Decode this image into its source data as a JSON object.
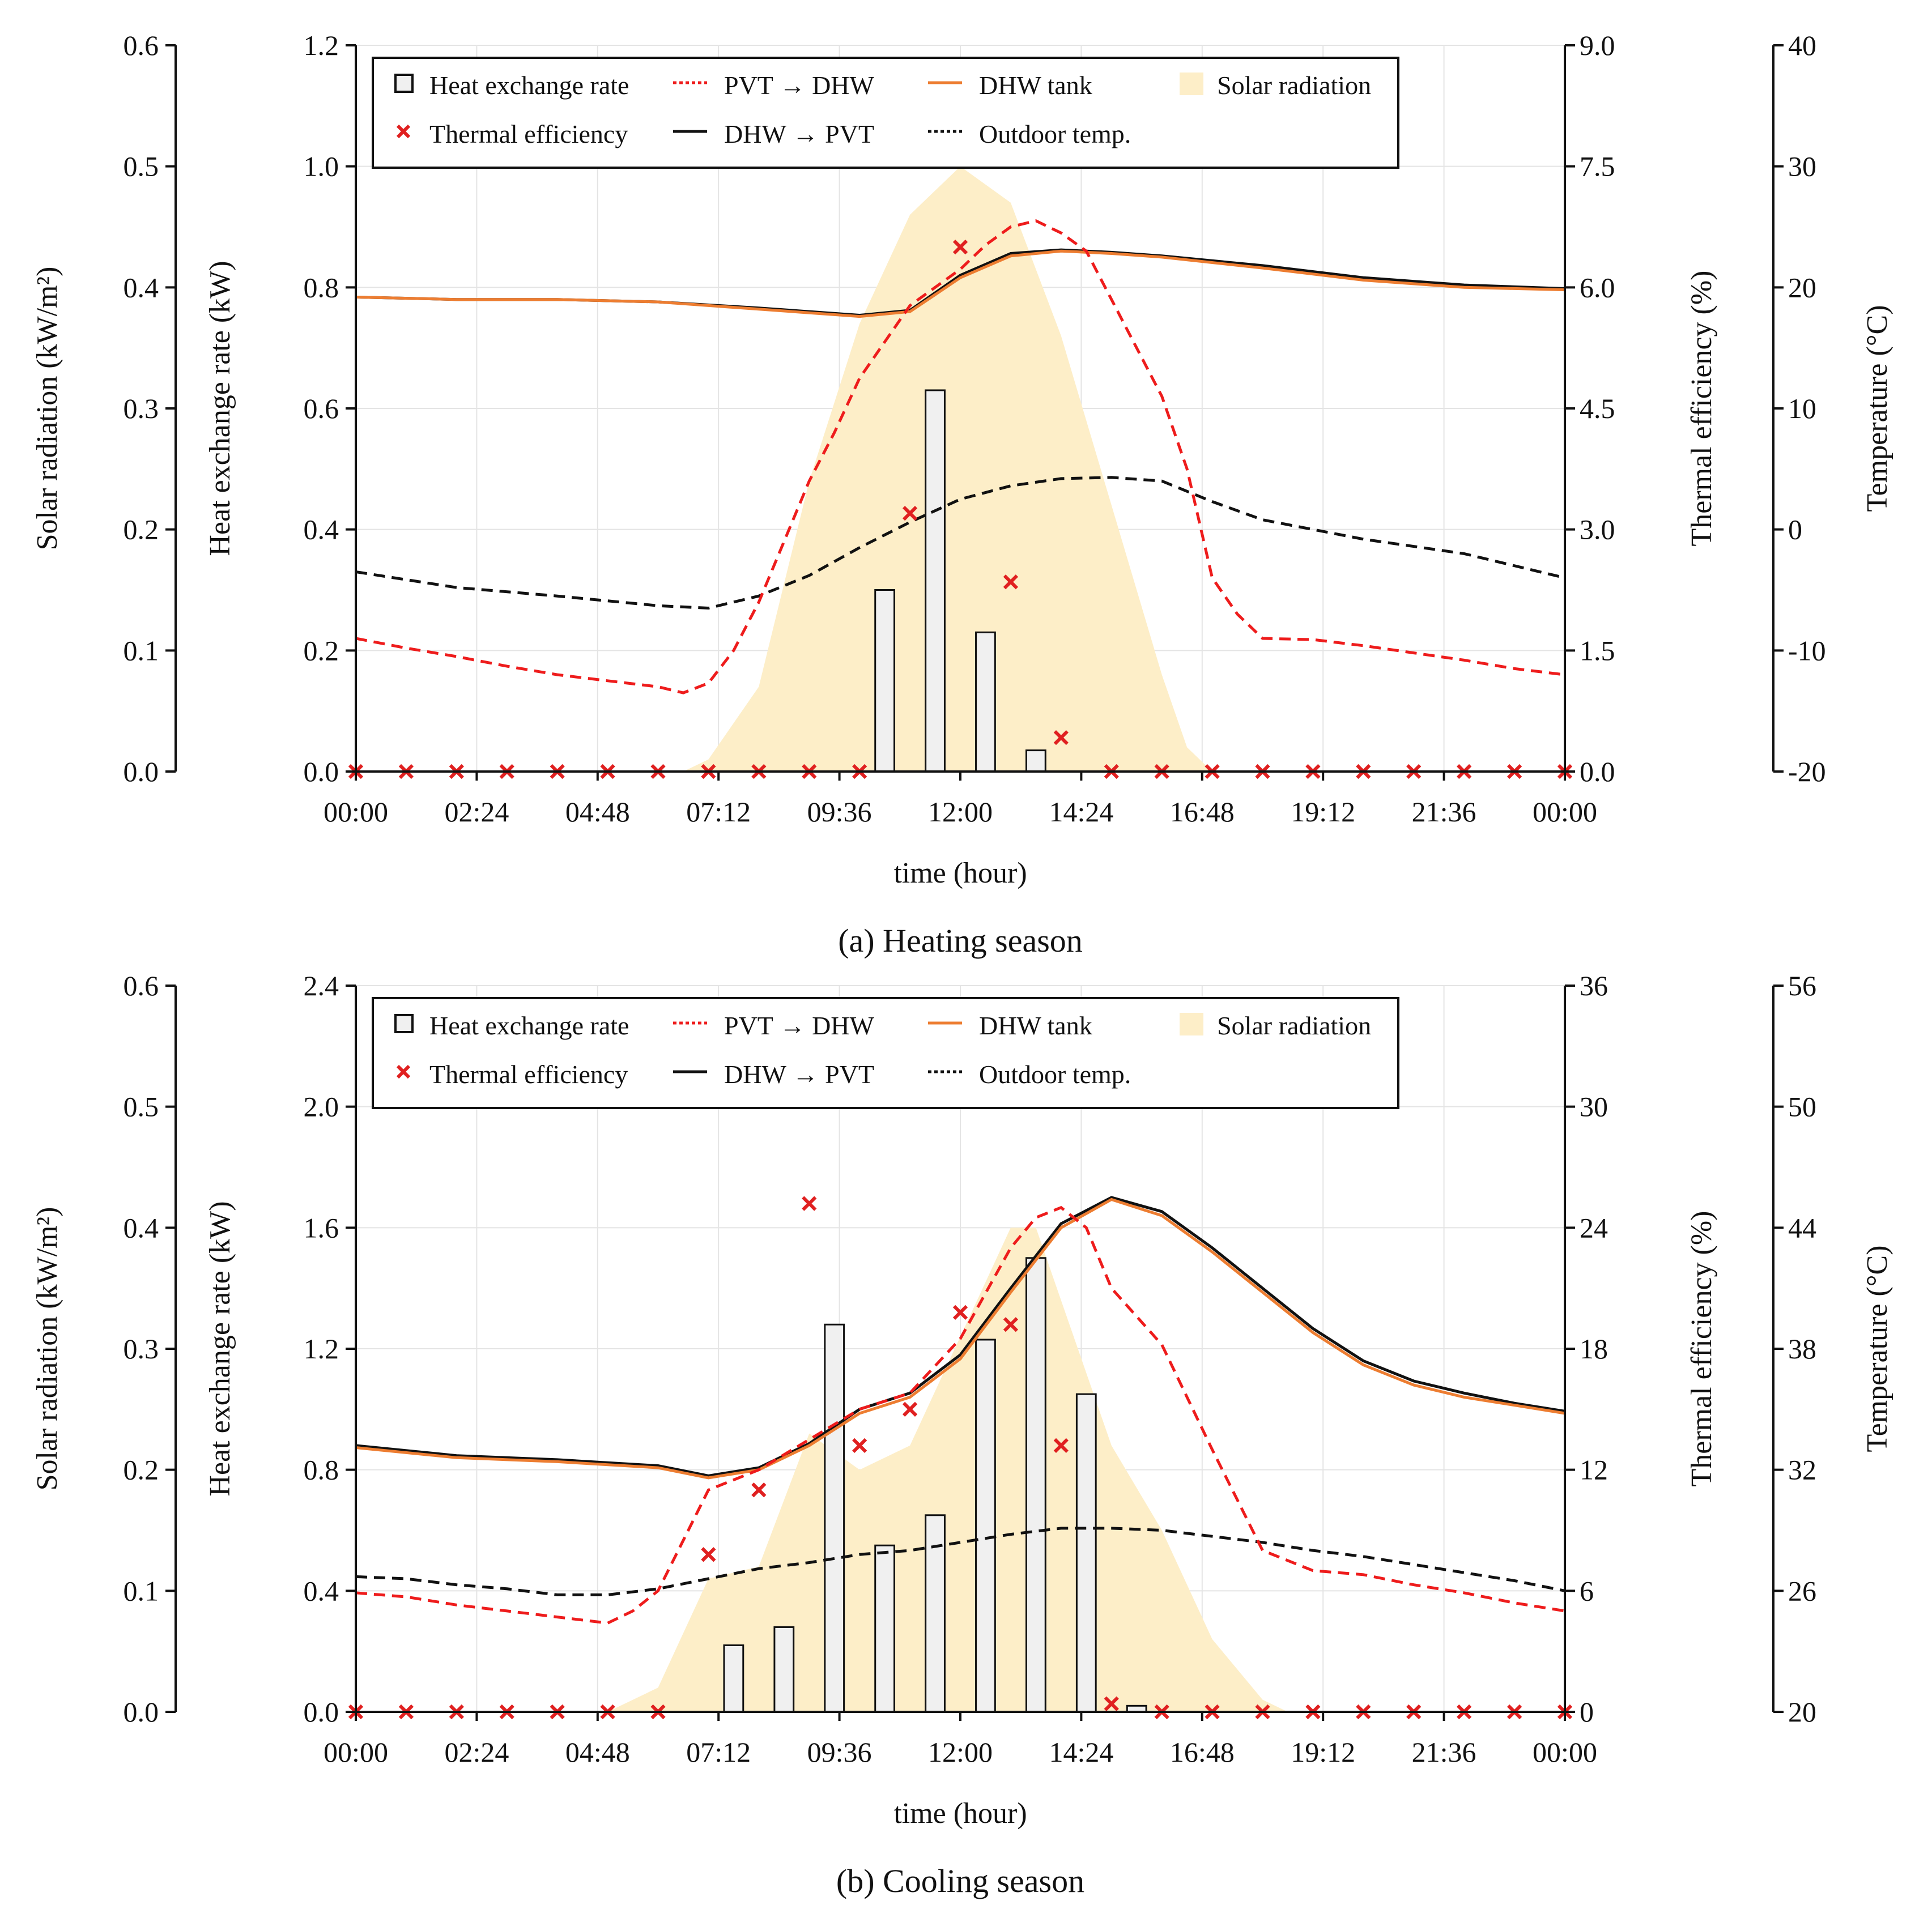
{
  "chart_data": [
    {
      "type": "mixed",
      "caption": "(a) Heating season",
      "xlabel": "time (hour)",
      "x_ticks": [
        "00:00",
        "02:24",
        "04:48",
        "07:12",
        "09:36",
        "12:00",
        "14:24",
        "16:48",
        "19:12",
        "21:36",
        "00:00"
      ],
      "axes": {
        "solar": {
          "label": "Solar radiation (kW/m²)",
          "ylim": [
            0,
            0.6
          ],
          "ticks": [
            "0.0",
            "0.1",
            "0.2",
            "0.3",
            "0.4",
            "0.5",
            "0.6"
          ]
        },
        "heat": {
          "label": "Heat exchange rate (kW)",
          "ylim": [
            0,
            1.2
          ],
          "ticks": [
            "0.0",
            "0.2",
            "0.4",
            "0.6",
            "0.8",
            "1.0",
            "1.2"
          ]
        },
        "eff": {
          "label": "Thermal efficiency (%)",
          "ylim": [
            0,
            9.0
          ],
          "ticks": [
            "0.0",
            "1.5",
            "3.0",
            "4.5",
            "6.0",
            "7.5",
            "9.0"
          ]
        },
        "temp": {
          "label": "Temperature (°C)",
          "ylim": [
            -20,
            40
          ],
          "ticks": [
            "-20",
            "-10",
            "0",
            "10",
            "20",
            "30",
            "40"
          ]
        }
      },
      "legend": [
        {
          "key": "heat_rate",
          "label": "Heat exchange rate"
        },
        {
          "key": "pvt_dhw",
          "label": "PVT → DHW"
        },
        {
          "key": "dhw_tank",
          "label": "DHW tank"
        },
        {
          "key": "solar",
          "label": "Solar radiation"
        },
        {
          "key": "efficiency",
          "label": "Thermal efficiency"
        },
        {
          "key": "dhw_pvt",
          "label": "DHW → PVT"
        },
        {
          "key": "outdoor",
          "label": "Outdoor temp."
        }
      ],
      "colors": {
        "solar": "#fdeec8",
        "pvt_dhw": "#ee1c1c",
        "dhw_tank": "#ed7d31",
        "dhw_pvt": "#111111",
        "outdoor": "#111111",
        "efficiency": "#e02020",
        "bar": "#f0f0f0"
      },
      "solar_radiation": {
        "hours": [
          0,
          6.5,
          7,
          8,
          9,
          10,
          11,
          12,
          13,
          14,
          15,
          16,
          16.5,
          17,
          24
        ],
        "values": [
          0,
          0,
          0.01,
          0.07,
          0.24,
          0.37,
          0.46,
          0.5,
          0.47,
          0.36,
          0.22,
          0.08,
          0.02,
          0,
          0
        ]
      },
      "heat_exchange_bars": {
        "hours": [
          10.5,
          11.5,
          12.5,
          13.5,
          14.5
        ],
        "values": [
          0.3,
          0.63,
          0.23,
          0.035,
          0
        ]
      },
      "thermal_efficiency": {
        "hours": [
          0,
          1,
          2,
          3,
          4,
          5,
          6,
          7,
          8,
          9,
          10,
          11,
          12,
          13,
          14,
          15,
          16,
          17,
          18,
          19,
          20,
          21,
          22,
          23,
          24
        ],
        "values": [
          0,
          0,
          0,
          0,
          0,
          0,
          0,
          0,
          0,
          0,
          0,
          3.2,
          6.5,
          2.35,
          0.42,
          0,
          0,
          0,
          0,
          0,
          0,
          0,
          0,
          0,
          0
        ]
      },
      "pvt_to_dhw_temp": {
        "hours": [
          0,
          1,
          2,
          3,
          4,
          5,
          6,
          6.5,
          7,
          7.5,
          8,
          8.5,
          9,
          9.5,
          10,
          10.5,
          11,
          11.5,
          12,
          12.5,
          13,
          13.5,
          14,
          14.5,
          15,
          15.5,
          16,
          16.5,
          17,
          17.5,
          18,
          19,
          20,
          21,
          22,
          23,
          24
        ],
        "values": [
          -9,
          -9.8,
          -10.5,
          -11.3,
          -12,
          -12.5,
          -13,
          -13.5,
          -12.7,
          -10,
          -6,
          -1,
          4,
          8,
          12.5,
          15.5,
          18.5,
          20,
          21.5,
          23.5,
          25,
          25.5,
          24.5,
          23,
          19,
          15,
          11,
          5,
          -4,
          -7,
          -9,
          -9.1,
          -9.6,
          -10.2,
          -10.8,
          -11.5,
          -12
        ]
      },
      "dhw_tank_temp": {
        "hours": [
          0,
          2,
          4,
          6,
          8,
          10,
          11,
          12,
          13,
          14,
          15,
          16,
          18,
          20,
          22,
          24
        ],
        "values": [
          19.2,
          19,
          19,
          18.8,
          18.2,
          17.6,
          18,
          20.8,
          22.6,
          23,
          22.8,
          22.5,
          21.6,
          20.6,
          20,
          19.8
        ]
      },
      "dhw_to_pvt_temp": {
        "hours": [
          0,
          2,
          4,
          6,
          8,
          10,
          11,
          12,
          13,
          14,
          15,
          16,
          18,
          20,
          22,
          24
        ],
        "values": [
          19.2,
          19,
          19,
          18.8,
          18.3,
          17.7,
          18.1,
          21,
          22.8,
          23.1,
          22.9,
          22.6,
          21.8,
          20.8,
          20.2,
          19.9
        ]
      },
      "outdoor_temp": {
        "hours": [
          0,
          2,
          4,
          6,
          7,
          8,
          9,
          10,
          11,
          12,
          13,
          14,
          15,
          16,
          17,
          18,
          20,
          22,
          24
        ],
        "values": [
          -3.5,
          -4.8,
          -5.5,
          -6.3,
          -6.5,
          -5.5,
          -3.8,
          -1.5,
          0.6,
          2.5,
          3.6,
          4.2,
          4.3,
          4,
          2.3,
          0.8,
          -0.8,
          -2,
          -4
        ]
      }
    },
    {
      "type": "mixed",
      "caption": "(b) Cooling season",
      "xlabel": "time (hour)",
      "x_ticks": [
        "00:00",
        "02:24",
        "04:48",
        "07:12",
        "09:36",
        "12:00",
        "14:24",
        "16:48",
        "19:12",
        "21:36",
        "00:00"
      ],
      "axes": {
        "solar": {
          "label": "Solar radiation (kW/m²)",
          "ylim": [
            0,
            0.6
          ],
          "ticks": [
            "0.0",
            "0.1",
            "0.2",
            "0.3",
            "0.4",
            "0.5",
            "0.6"
          ]
        },
        "heat": {
          "label": "Heat exchange rate (kW)",
          "ylim": [
            0,
            2.4
          ],
          "ticks": [
            "0.0",
            "0.4",
            "0.8",
            "1.2",
            "1.6",
            "2.0",
            "2.4"
          ]
        },
        "eff": {
          "label": "Thermal efficiency (%)",
          "ylim": [
            0,
            36
          ],
          "ticks": [
            "0",
            "6",
            "12",
            "18",
            "24",
            "30",
            "36"
          ]
        },
        "temp": {
          "label": "Temperature (°C)",
          "ylim": [
            20,
            56
          ],
          "ticks": [
            "20",
            "26",
            "32",
            "38",
            "44",
            "50",
            "56"
          ]
        }
      },
      "legend": [
        {
          "key": "heat_rate",
          "label": "Heat exchange rate"
        },
        {
          "key": "pvt_dhw",
          "label": "PVT → DHW"
        },
        {
          "key": "dhw_tank",
          "label": "DHW tank"
        },
        {
          "key": "solar",
          "label": "Solar radiation"
        },
        {
          "key": "efficiency",
          "label": "Thermal efficiency"
        },
        {
          "key": "dhw_pvt",
          "label": "DHW → PVT"
        },
        {
          "key": "outdoor",
          "label": "Outdoor temp."
        }
      ],
      "colors": {
        "solar": "#fdeec8",
        "pvt_dhw": "#ee1c1c",
        "dhw_tank": "#ed7d31",
        "dhw_pvt": "#111111",
        "outdoor": "#111111",
        "efficiency": "#e02020",
        "bar": "#f0f0f0"
      },
      "solar_radiation": {
        "hours": [
          0,
          5,
          6,
          7,
          8,
          9,
          10,
          11,
          12,
          13,
          13.5,
          14,
          15,
          16,
          17,
          18,
          18.5,
          24
        ],
        "values": [
          0,
          0,
          0.02,
          0.11,
          0.12,
          0.23,
          0.2,
          0.22,
          0.31,
          0.4,
          0.4,
          0.34,
          0.22,
          0.15,
          0.06,
          0.01,
          0,
          0
        ]
      },
      "heat_exchange_bars": {
        "hours": [
          7.5,
          8.5,
          9.5,
          10.5,
          11.5,
          12.5,
          13.5,
          14.5,
          15.5
        ],
        "values": [
          0.22,
          0.28,
          1.28,
          0.55,
          0.65,
          1.23,
          1.5,
          1.05,
          0.02
        ]
      },
      "thermal_efficiency": {
        "hours": [
          0,
          1,
          2,
          3,
          4,
          5,
          6,
          7,
          8,
          9,
          10,
          11,
          12,
          13,
          14,
          15,
          16,
          17,
          18,
          19,
          20,
          21,
          22,
          23,
          24
        ],
        "values": [
          0,
          0,
          0,
          0,
          0,
          0,
          0,
          7.8,
          11,
          25.2,
          13.2,
          15,
          19.8,
          19.2,
          13.2,
          0.4,
          0,
          0,
          0,
          0,
          0,
          0,
          0,
          0,
          0
        ]
      },
      "pvt_to_dhw_temp": {
        "hours": [
          0,
          1,
          2,
          3,
          4,
          5,
          5.5,
          6,
          6.5,
          7,
          8,
          9,
          10,
          11,
          12,
          13,
          13.5,
          14,
          14.5,
          15,
          16,
          17,
          18,
          19,
          20,
          21,
          22,
          23,
          24
        ],
        "values": [
          25.9,
          25.7,
          25.3,
          25,
          24.7,
          24.4,
          25,
          26,
          28.5,
          31,
          32,
          33.5,
          35,
          35.8,
          38.5,
          43,
          44.5,
          45,
          44,
          41,
          38.2,
          33,
          28,
          27,
          26.8,
          26.3,
          25.9,
          25.4,
          25
        ]
      },
      "dhw_tank_temp": {
        "hours": [
          0,
          2,
          4,
          6,
          7,
          8,
          9,
          10,
          11,
          12,
          13,
          14,
          15,
          16,
          17,
          18,
          19,
          20,
          21,
          22,
          23,
          24
        ],
        "values": [
          33.1,
          32.6,
          32.4,
          32.1,
          31.6,
          32,
          33.2,
          34.8,
          35.6,
          37.5,
          40.8,
          44,
          45.4,
          44.6,
          42.8,
          40.8,
          38.8,
          37.2,
          36.2,
          35.6,
          35.2,
          34.8
        ]
      },
      "dhw_to_pvt_temp": {
        "hours": [
          0,
          2,
          4,
          6,
          7,
          8,
          9,
          10,
          11,
          12,
          13,
          14,
          15,
          16,
          17,
          18,
          19,
          20,
          21,
          22,
          23,
          24
        ],
        "values": [
          33.2,
          32.7,
          32.5,
          32.2,
          31.7,
          32.1,
          33.3,
          35,
          35.8,
          37.7,
          41,
          44.2,
          45.5,
          44.8,
          43,
          41,
          39,
          37.4,
          36.4,
          35.8,
          35.3,
          34.9
        ]
      },
      "outdoor_temp": {
        "hours": [
          0,
          1,
          2,
          3,
          4,
          5,
          6,
          7,
          8,
          9,
          10,
          11,
          12,
          13,
          14,
          15,
          16,
          17,
          18,
          19,
          20,
          21,
          22,
          23,
          24
        ],
        "values": [
          26.7,
          26.6,
          26.3,
          26.1,
          25.8,
          25.8,
          26.1,
          26.6,
          27.1,
          27.4,
          27.8,
          28,
          28.4,
          28.8,
          29.1,
          29.1,
          29,
          28.7,
          28.4,
          28,
          27.7,
          27.3,
          26.9,
          26.5,
          26
        ]
      }
    }
  ]
}
